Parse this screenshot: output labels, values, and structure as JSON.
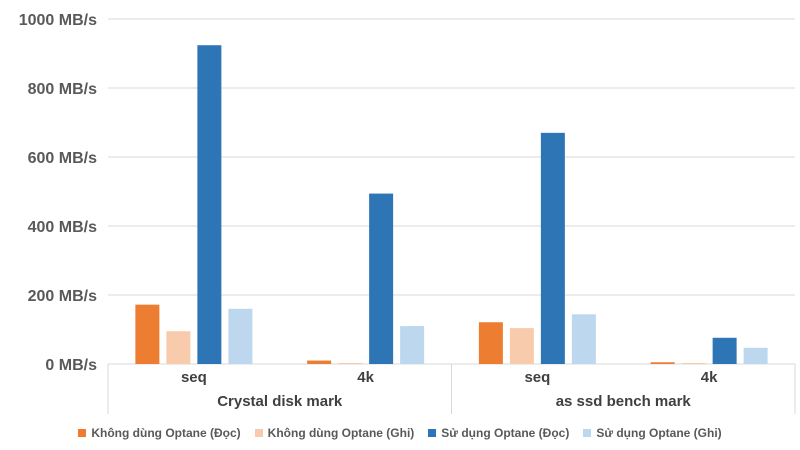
{
  "chart_data": {
    "type": "bar",
    "y_tick_labels": [
      "0 MB/s",
      "200 MB/s",
      "400 MB/s",
      "600 MB/s",
      "800 MB/s",
      "1000 MB/s"
    ],
    "y_ticks": [
      0,
      200,
      400,
      600,
      800,
      1000
    ],
    "ylim": [
      0,
      1000
    ],
    "grid": true,
    "legend_position": "bottom",
    "groups": [
      {
        "label": "Crystal disk mark",
        "categories": [
          "seq",
          "4k"
        ]
      },
      {
        "label": "as ssd bench mark",
        "categories": [
          "seq",
          "4k"
        ]
      }
    ],
    "categories": [
      "seq",
      "4k",
      "seq",
      "4k"
    ],
    "series": [
      {
        "name": "Không dùng Optane (Đọc)",
        "color": "#ED7D31",
        "values": [
          172,
          10,
          121,
          5
        ]
      },
      {
        "name": "Không dùng Optane (Ghi)",
        "color": "#F8CBAD",
        "values": [
          95,
          3,
          104,
          3
        ]
      },
      {
        "name": "Sử dụng Optane (Đọc)",
        "color": "#2E75B6",
        "values": [
          924,
          494,
          670,
          76
        ]
      },
      {
        "name": "Sử dụng Optane (Ghi)",
        "color": "#BDD7EE",
        "values": [
          160,
          110,
          144,
          47
        ]
      }
    ]
  }
}
